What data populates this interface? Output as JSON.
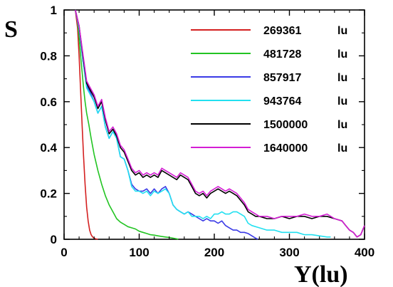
{
  "chart_data": {
    "type": "line",
    "xlabel": "Y(lu)",
    "ylabel": "S",
    "xlim": [
      0,
      400
    ],
    "ylim": [
      0,
      1
    ],
    "xticks": [
      0,
      100,
      200,
      300,
      400
    ],
    "yticks": [
      0,
      0.2,
      0.4,
      0.6,
      0.8,
      1
    ],
    "ytick_labels": [
      "0",
      "0.2",
      "0.4",
      "0.6",
      "0.8",
      "1"
    ],
    "grid": false,
    "legend_position": "top-right",
    "series": [
      {
        "name": "269361",
        "unit": "lu",
        "color": "#d42020",
        "x": [
          15,
          18,
          20,
          22,
          24,
          26,
          28,
          30,
          32,
          34,
          36,
          38,
          40,
          42,
          45
        ],
        "y": [
          1.0,
          0.92,
          0.8,
          0.65,
          0.5,
          0.36,
          0.24,
          0.14,
          0.08,
          0.04,
          0.02,
          0.01,
          0.005,
          0.002,
          0.0
        ]
      },
      {
        "name": "481728",
        "unit": "lu",
        "color": "#22c422",
        "x": [
          15,
          18,
          20,
          22,
          24,
          26,
          28,
          30,
          33,
          36,
          40,
          45,
          50,
          55,
          60,
          65,
          70,
          75,
          80,
          85,
          90,
          95,
          100,
          105,
          110,
          115,
          120,
          125,
          130,
          135,
          140,
          145,
          150,
          152
        ],
        "y": [
          1.0,
          0.95,
          0.88,
          0.8,
          0.73,
          0.66,
          0.6,
          0.55,
          0.5,
          0.44,
          0.37,
          0.3,
          0.24,
          0.19,
          0.15,
          0.12,
          0.09,
          0.075,
          0.065,
          0.055,
          0.05,
          0.045,
          0.035,
          0.03,
          0.025,
          0.02,
          0.018,
          0.015,
          0.012,
          0.01,
          0.008,
          0.005,
          0.002,
          0.0
        ]
      },
      {
        "name": "857917",
        "unit": "lu",
        "color": "#3a3ae6",
        "x": [
          15,
          20,
          25,
          30,
          35,
          40,
          45,
          50,
          55,
          60,
          65,
          70,
          75,
          80,
          85,
          90,
          95,
          100,
          105,
          110,
          115,
          120,
          125,
          130,
          135,
          140,
          145,
          150,
          155,
          160,
          165,
          170,
          175,
          180,
          185,
          190,
          195,
          200,
          205,
          210,
          215,
          220,
          225,
          230,
          235,
          240,
          245,
          250,
          255,
          258
        ],
        "y": [
          1.0,
          0.92,
          0.78,
          0.67,
          0.64,
          0.6,
          0.55,
          0.58,
          0.49,
          0.44,
          0.47,
          0.44,
          0.36,
          0.35,
          0.3,
          0.24,
          0.22,
          0.21,
          0.21,
          0.22,
          0.2,
          0.22,
          0.2,
          0.22,
          0.23,
          0.2,
          0.15,
          0.13,
          0.12,
          0.11,
          0.12,
          0.11,
          0.1,
          0.09,
          0.08,
          0.09,
          0.08,
          0.08,
          0.07,
          0.08,
          0.06,
          0.05,
          0.04,
          0.04,
          0.03,
          0.03,
          0.025,
          0.015,
          0.005,
          0.0
        ]
      },
      {
        "name": "943764",
        "unit": "lu",
        "color": "#22e0f0",
        "x": [
          15,
          20,
          25,
          30,
          35,
          40,
          45,
          50,
          55,
          60,
          65,
          70,
          75,
          80,
          85,
          90,
          95,
          100,
          105,
          110,
          115,
          120,
          125,
          130,
          135,
          140,
          145,
          150,
          155,
          160,
          165,
          170,
          175,
          180,
          185,
          190,
          195,
          200,
          205,
          210,
          215,
          220,
          225,
          230,
          235,
          240,
          245,
          250,
          260,
          270,
          280,
          290,
          300,
          310,
          320,
          330,
          340,
          350,
          355
        ],
        "y": [
          1.0,
          0.92,
          0.78,
          0.66,
          0.63,
          0.6,
          0.55,
          0.58,
          0.49,
          0.44,
          0.47,
          0.44,
          0.36,
          0.35,
          0.3,
          0.23,
          0.21,
          0.21,
          0.2,
          0.21,
          0.19,
          0.21,
          0.2,
          0.21,
          0.22,
          0.2,
          0.15,
          0.13,
          0.12,
          0.11,
          0.12,
          0.1,
          0.1,
          0.1,
          0.09,
          0.1,
          0.09,
          0.11,
          0.11,
          0.12,
          0.11,
          0.11,
          0.12,
          0.12,
          0.11,
          0.1,
          0.07,
          0.06,
          0.05,
          0.04,
          0.04,
          0.03,
          0.03,
          0.03,
          0.02,
          0.02,
          0.015,
          0.01,
          0.01
        ]
      },
      {
        "name": "1500000",
        "unit": "lu",
        "color": "#000000",
        "x": [
          15,
          20,
          25,
          30,
          35,
          40,
          45,
          50,
          55,
          60,
          65,
          70,
          75,
          80,
          85,
          90,
          95,
          100,
          105,
          110,
          115,
          120,
          125,
          130,
          135,
          140,
          145,
          150,
          155,
          160,
          165,
          170,
          175,
          180,
          185,
          190,
          195,
          200,
          205,
          210,
          215,
          220,
          225,
          230,
          235,
          240,
          245,
          250,
          255,
          260,
          270,
          280,
          290,
          300,
          310,
          320,
          330,
          340,
          350,
          360,
          370,
          375,
          380,
          385,
          390,
          395,
          400
        ],
        "y": [
          1.0,
          0.93,
          0.8,
          0.68,
          0.65,
          0.62,
          0.57,
          0.6,
          0.52,
          0.46,
          0.48,
          0.45,
          0.4,
          0.38,
          0.34,
          0.3,
          0.28,
          0.29,
          0.27,
          0.28,
          0.27,
          0.28,
          0.27,
          0.3,
          0.29,
          0.28,
          0.27,
          0.26,
          0.28,
          0.27,
          0.26,
          0.23,
          0.2,
          0.19,
          0.2,
          0.18,
          0.2,
          0.21,
          0.22,
          0.21,
          0.2,
          0.21,
          0.2,
          0.19,
          0.17,
          0.15,
          0.12,
          0.11,
          0.1,
          0.1,
          0.09,
          0.09,
          0.1,
          0.09,
          0.1,
          0.1,
          0.09,
          0.1,
          0.1,
          0.09,
          0.08,
          0.06,
          0.04,
          0.03,
          0.01,
          0.02,
          0.06
        ]
      },
      {
        "name": "1640000",
        "unit": "lu",
        "color": "#d41ed4",
        "x": [
          15,
          20,
          25,
          30,
          35,
          40,
          45,
          50,
          55,
          60,
          65,
          70,
          75,
          80,
          85,
          90,
          95,
          100,
          105,
          110,
          115,
          120,
          125,
          130,
          135,
          140,
          145,
          150,
          155,
          160,
          165,
          170,
          175,
          180,
          185,
          190,
          195,
          200,
          205,
          210,
          215,
          220,
          225,
          230,
          235,
          240,
          245,
          250,
          255,
          260,
          270,
          280,
          290,
          300,
          310,
          320,
          330,
          340,
          350,
          360,
          370,
          375,
          380,
          385,
          390,
          395,
          400
        ],
        "y": [
          1.0,
          0.93,
          0.81,
          0.69,
          0.66,
          0.63,
          0.58,
          0.61,
          0.53,
          0.47,
          0.49,
          0.46,
          0.41,
          0.39,
          0.35,
          0.31,
          0.29,
          0.3,
          0.28,
          0.29,
          0.28,
          0.29,
          0.28,
          0.31,
          0.3,
          0.29,
          0.28,
          0.27,
          0.29,
          0.28,
          0.27,
          0.24,
          0.21,
          0.2,
          0.21,
          0.19,
          0.21,
          0.22,
          0.23,
          0.22,
          0.21,
          0.22,
          0.21,
          0.2,
          0.18,
          0.16,
          0.13,
          0.12,
          0.11,
          0.1,
          0.1,
          0.09,
          0.1,
          0.1,
          0.1,
          0.11,
          0.1,
          0.1,
          0.11,
          0.09,
          0.08,
          0.06,
          0.04,
          0.03,
          0.01,
          0.02,
          0.06
        ]
      }
    ]
  }
}
